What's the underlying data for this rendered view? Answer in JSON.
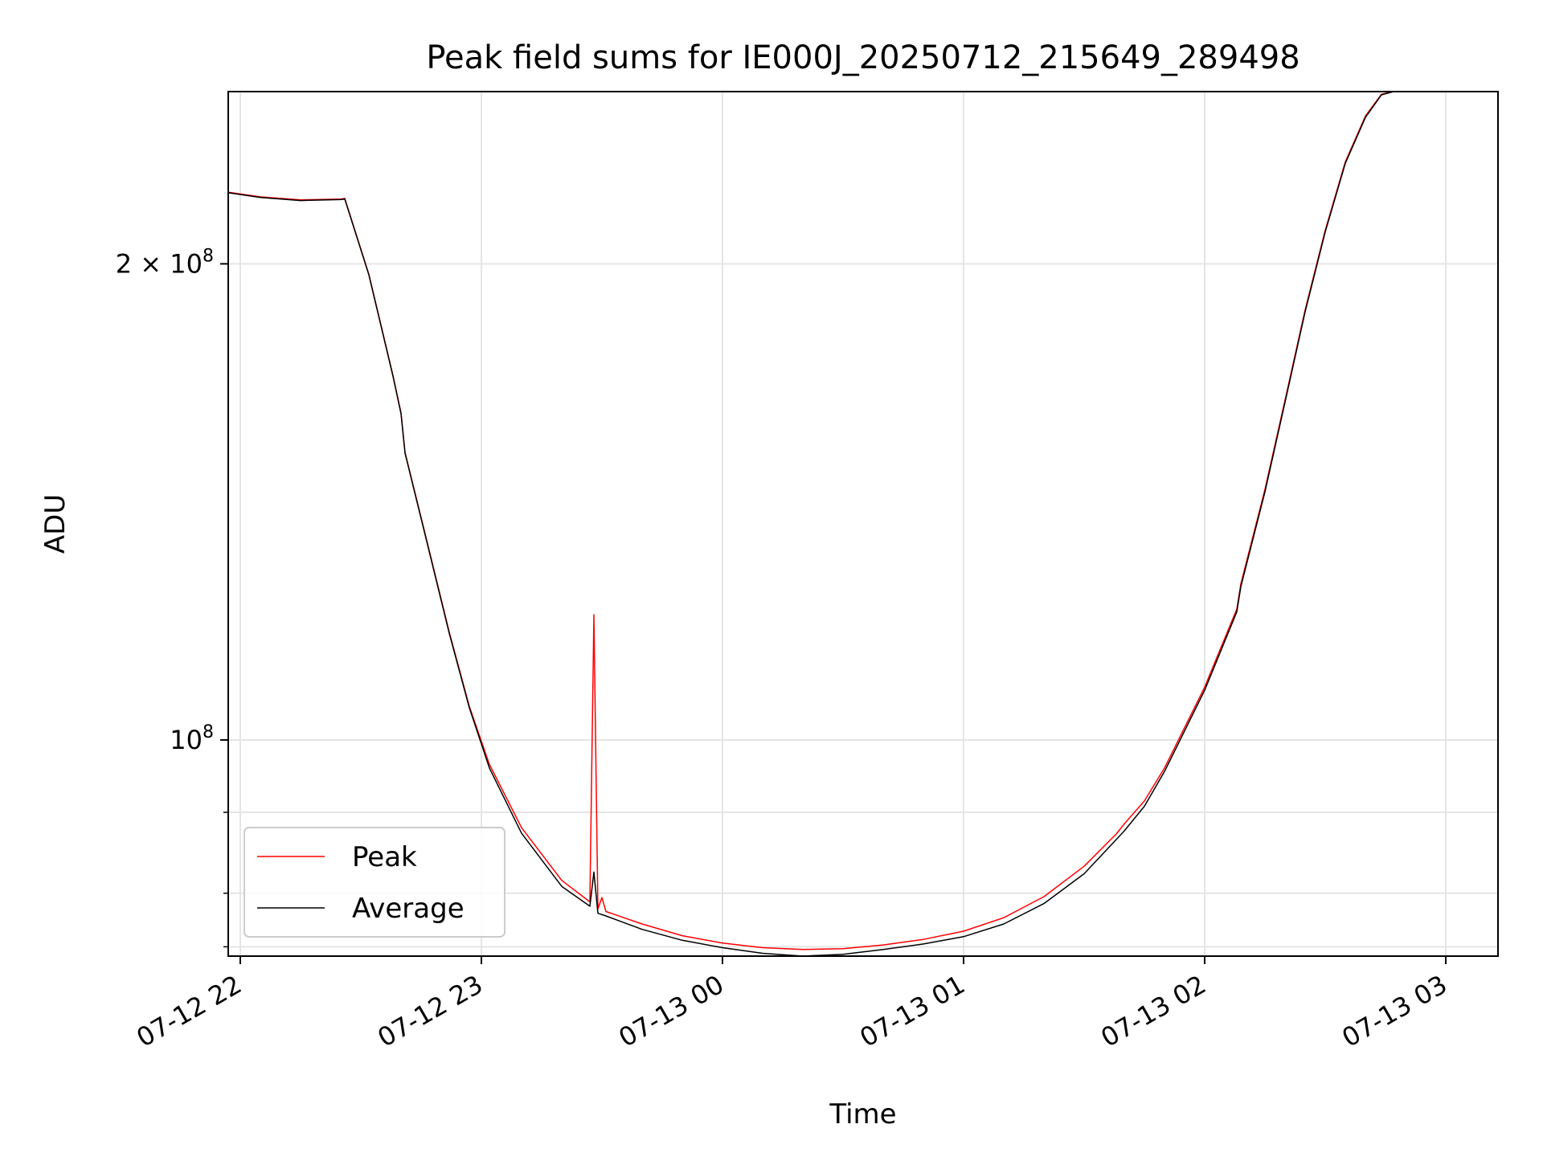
{
  "chart_data": {
    "type": "line",
    "title": "Peak field sums for IE000J_20250712_215649_289498",
    "xlabel": "Time",
    "ylabel": "ADU",
    "yscale": "log",
    "grid": true,
    "legend_position": "lower-left",
    "xlim": [
      "2025-07-12 21:57",
      "2025-07-13 03:13"
    ],
    "ylim": [
      73000000,
      257000000
    ],
    "x_ticks": [
      {
        "value": "2025-07-12 22:00",
        "label": "07-12 22"
      },
      {
        "value": "2025-07-12 23:00",
        "label": "07-12 23"
      },
      {
        "value": "2025-07-13 00:00",
        "label": "07-13 00"
      },
      {
        "value": "2025-07-13 01:00",
        "label": "07-13 01"
      },
      {
        "value": "2025-07-13 02:00",
        "label": "07-13 02"
      },
      {
        "value": "2025-07-13 03:00",
        "label": "07-13 03"
      }
    ],
    "y_major_ticks": [
      {
        "value": 100000000,
        "label_base": "10",
        "label_exp": "8",
        "label_mult": ""
      },
      {
        "value": 200000000,
        "label_base": "10",
        "label_exp": "8",
        "label_mult": "2 × "
      }
    ],
    "y_minor_ticks": [
      74000000,
      80000000,
      90000000
    ],
    "series": [
      {
        "name": "Peak",
        "color": "#ff0000",
        "points": [
          [
            "2025-07-12 21:57",
            222000000
          ],
          [
            "2025-07-12 22:05",
            220500000
          ],
          [
            "2025-07-12 22:15",
            219500000
          ],
          [
            "2025-07-12 22:25",
            219800000
          ],
          [
            "2025-07-12 22:26",
            220000000
          ],
          [
            "2025-07-12 22:32",
            197000000
          ],
          [
            "2025-07-12 22:38",
            170000000
          ],
          [
            "2025-07-12 22:40",
            161000000
          ],
          [
            "2025-07-12 22:41",
            152000000
          ],
          [
            "2025-07-12 22:46",
            135000000
          ],
          [
            "2025-07-12 22:52",
            117000000
          ],
          [
            "2025-07-12 22:57",
            105000000
          ],
          [
            "2025-07-12 23:02",
            96500000
          ],
          [
            "2025-07-12 23:10",
            88000000
          ],
          [
            "2025-07-12 23:20",
            81500000
          ],
          [
            "2025-07-12 23:27",
            79000000
          ],
          [
            "2025-07-12 23:28",
            120000000
          ],
          [
            "2025-07-12 23:29",
            78200000
          ],
          [
            "2025-07-12 23:30",
            79500000
          ],
          [
            "2025-07-12 23:31",
            77900000
          ],
          [
            "2025-07-12 23:40",
            76500000
          ],
          [
            "2025-07-12 23:50",
            75200000
          ],
          [
            "2025-07-13 00:00",
            74400000
          ],
          [
            "2025-07-13 00:10",
            73900000
          ],
          [
            "2025-07-13 00:20",
            73700000
          ],
          [
            "2025-07-13 00:30",
            73800000
          ],
          [
            "2025-07-13 00:40",
            74200000
          ],
          [
            "2025-07-13 00:50",
            74800000
          ],
          [
            "2025-07-13 01:00",
            75700000
          ],
          [
            "2025-07-13 01:10",
            77200000
          ],
          [
            "2025-07-13 01:20",
            79600000
          ],
          [
            "2025-07-13 01:30",
            83200000
          ],
          [
            "2025-07-13 01:38",
            87200000
          ],
          [
            "2025-07-13 01:40",
            88500000
          ],
          [
            "2025-07-13 01:45",
            91500000
          ],
          [
            "2025-07-13 01:50",
            96000000
          ],
          [
            "2025-07-13 02:00",
            108000000
          ],
          [
            "2025-07-13 02:08",
            121000000
          ],
          [
            "2025-07-13 02:09",
            125500000
          ],
          [
            "2025-07-13 02:15",
            144000000
          ],
          [
            "2025-07-13 02:20",
            164000000
          ],
          [
            "2025-07-13 02:25",
            187000000
          ],
          [
            "2025-07-13 02:30",
            210000000
          ],
          [
            "2025-07-13 02:35",
            232000000
          ],
          [
            "2025-07-13 02:40",
            248000000
          ],
          [
            "2025-07-13 02:44",
            256000000
          ],
          [
            "2025-07-13 02:47",
            257000000
          ]
        ]
      },
      {
        "name": "Average",
        "color": "#000000",
        "points": [
          [
            "2025-07-12 21:57",
            221800000
          ],
          [
            "2025-07-12 22:05",
            220300000
          ],
          [
            "2025-07-12 22:15",
            219300000
          ],
          [
            "2025-07-12 22:25",
            219600000
          ],
          [
            "2025-07-12 22:26",
            219800000
          ],
          [
            "2025-07-12 22:32",
            196800000
          ],
          [
            "2025-07-12 22:38",
            169800000
          ],
          [
            "2025-07-12 22:40",
            160800000
          ],
          [
            "2025-07-12 22:41",
            151800000
          ],
          [
            "2025-07-12 22:46",
            134800000
          ],
          [
            "2025-07-12 22:52",
            116800000
          ],
          [
            "2025-07-12 22:57",
            104800000
          ],
          [
            "2025-07-12 23:02",
            96000000
          ],
          [
            "2025-07-12 23:10",
            87300000
          ],
          [
            "2025-07-12 23:20",
            80800000
          ],
          [
            "2025-07-12 23:27",
            78500000
          ],
          [
            "2025-07-12 23:28",
            82500000
          ],
          [
            "2025-07-12 23:29",
            77700000
          ],
          [
            "2025-07-12 23:31",
            77400000
          ],
          [
            "2025-07-12 23:40",
            75900000
          ],
          [
            "2025-07-12 23:50",
            74700000
          ],
          [
            "2025-07-13 00:00",
            73900000
          ],
          [
            "2025-07-13 00:10",
            73300000
          ],
          [
            "2025-07-13 00:20",
            73000000
          ],
          [
            "2025-07-13 00:30",
            73200000
          ],
          [
            "2025-07-13 00:40",
            73700000
          ],
          [
            "2025-07-13 00:50",
            74300000
          ],
          [
            "2025-07-13 01:00",
            75100000
          ],
          [
            "2025-07-13 01:10",
            76500000
          ],
          [
            "2025-07-13 01:20",
            78800000
          ],
          [
            "2025-07-13 01:30",
            82300000
          ],
          [
            "2025-07-13 01:38",
            86500000
          ],
          [
            "2025-07-13 01:40",
            87600000
          ],
          [
            "2025-07-13 01:45",
            90800000
          ],
          [
            "2025-07-13 01:50",
            95500000
          ],
          [
            "2025-07-13 02:00",
            107500000
          ],
          [
            "2025-07-13 02:08",
            120500000
          ],
          [
            "2025-07-13 02:09",
            125000000
          ],
          [
            "2025-07-13 02:15",
            143500000
          ],
          [
            "2025-07-13 02:20",
            163500000
          ],
          [
            "2025-07-13 02:25",
            186500000
          ],
          [
            "2025-07-13 02:30",
            209500000
          ],
          [
            "2025-07-13 02:35",
            231500000
          ],
          [
            "2025-07-13 02:40",
            247500000
          ],
          [
            "2025-07-13 02:44",
            255800000
          ],
          [
            "2025-07-13 02:47",
            257000000
          ]
        ]
      }
    ]
  }
}
